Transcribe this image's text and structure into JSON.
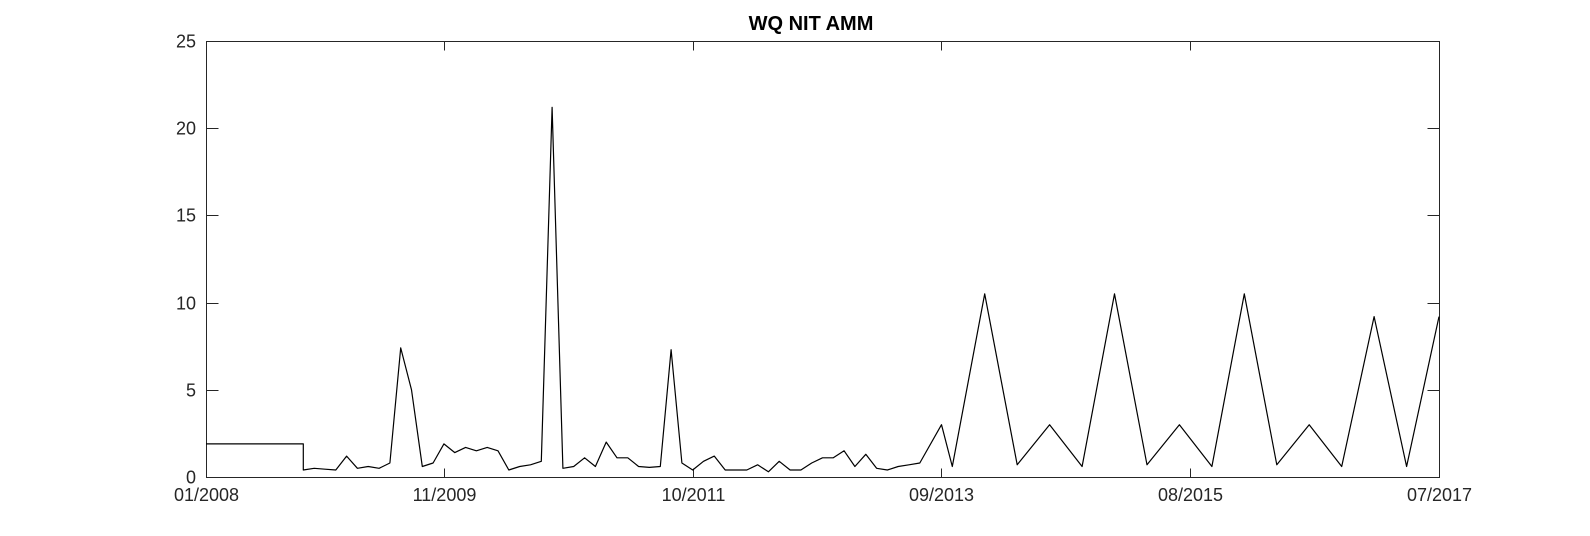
{
  "chart_data": {
    "type": "line",
    "title": "WQ NIT AMM",
    "xlabel": "",
    "ylabel": "",
    "x_ticks": [
      "01/2008",
      "11/2009",
      "10/2011",
      "09/2013",
      "08/2015",
      "07/2017"
    ],
    "y_ticks": [
      "0",
      "5",
      "10",
      "15",
      "20",
      "25"
    ],
    "ylim": [
      0,
      25
    ],
    "xlim": [
      "2008-01",
      "2017-07"
    ],
    "grid": false,
    "series": [
      {
        "x": [
          "2008-01",
          "2008-10",
          "2008-10",
          "2008-11",
          "2008-12",
          "2009-01",
          "2009-02",
          "2009-03",
          "2009-04",
          "2009-05",
          "2009-06",
          "2009-07",
          "2009-08",
          "2009-09",
          "2009-10",
          "2009-11",
          "2009-12",
          "2010-01",
          "2010-02",
          "2010-03",
          "2010-04",
          "2010-05",
          "2010-06",
          "2010-07",
          "2010-08",
          "2010-09",
          "2010-10",
          "2010-11",
          "2010-12",
          "2011-01",
          "2011-02",
          "2011-03",
          "2011-04",
          "2011-05",
          "2011-06",
          "2011-07",
          "2011-08",
          "2011-09",
          "2011-10",
          "2011-11",
          "2011-12",
          "2012-01",
          "2012-03",
          "2012-04",
          "2012-05",
          "2012-06",
          "2012-07",
          "2012-08",
          "2012-09",
          "2012-10",
          "2012-11",
          "2012-12",
          "2013-01",
          "2013-02",
          "2013-03",
          "2013-04",
          "2013-05",
          "2013-06",
          "2013-07",
          "2013-09",
          "2013-10",
          "2014-01",
          "2014-04",
          "2014-07",
          "2014-10",
          "2015-01",
          "2015-04",
          "2015-07",
          "2015-10",
          "2016-01",
          "2016-04",
          "2016-07",
          "2016-10",
          "2017-01",
          "2017-04",
          "2017-07"
        ],
        "y": [
          1.9,
          1.9,
          0.4,
          0.5,
          0.45,
          0.4,
          1.2,
          0.5,
          0.6,
          0.5,
          0.8,
          7.4,
          5.0,
          0.6,
          0.8,
          1.9,
          1.4,
          1.7,
          1.5,
          1.7,
          1.5,
          0.4,
          0.6,
          0.7,
          0.9,
          21.2,
          0.5,
          0.6,
          1.1,
          0.6,
          2.0,
          1.1,
          1.1,
          0.6,
          0.55,
          0.6,
          7.3,
          0.8,
          0.4,
          0.9,
          1.2,
          0.4,
          0.4,
          0.7,
          0.3,
          0.9,
          0.4,
          0.4,
          0.8,
          1.1,
          1.1,
          1.5,
          0.6,
          1.3,
          0.5,
          0.4,
          0.6,
          0.7,
          0.8,
          3.0,
          0.6,
          10.5,
          0.7,
          3.0,
          0.6,
          10.5,
          0.7,
          3.0,
          0.6,
          10.5,
          0.7,
          3.0,
          0.6,
          9.2,
          0.6,
          9.2
        ]
      }
    ]
  }
}
